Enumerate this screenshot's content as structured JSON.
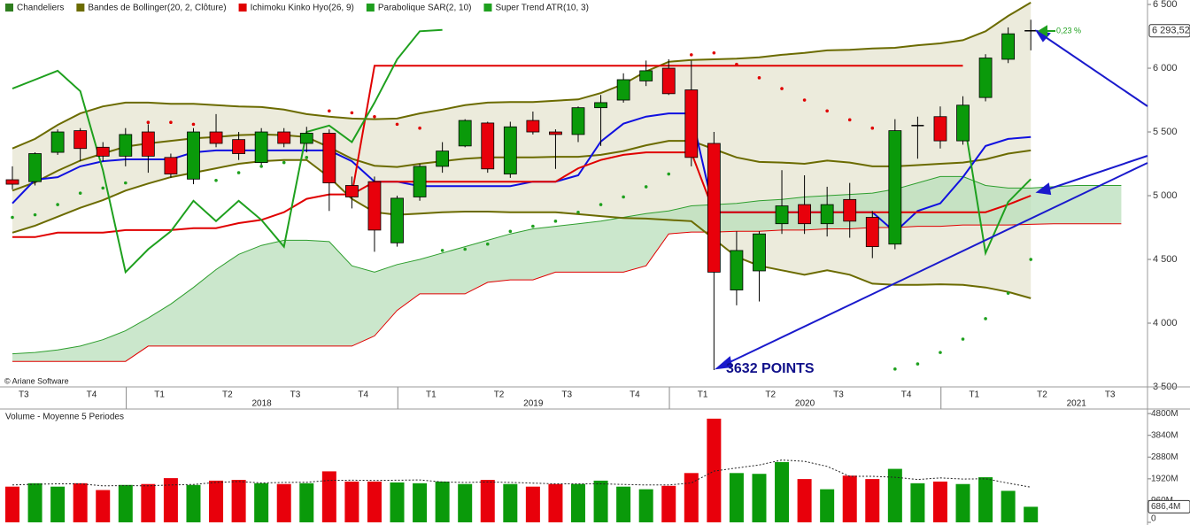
{
  "chart_data": {
    "type": "candlestick",
    "legend": [
      {
        "name": "Chandeliers",
        "color": "#2e7d1e"
      },
      {
        "name": "Bandes de Bollinger(20, 2, Clôture)",
        "color": "#6b6b00"
      },
      {
        "name": "Ichimoku Kinko Hyo(26, 9)",
        "color": "#e00000"
      },
      {
        "name": "Parabolique SAR(2, 10)",
        "color": "#1e9e1e"
      },
      {
        "name": "Super Trend ATR(10, 3)",
        "color": "#1ea01e"
      }
    ],
    "up_color": "#0a9a0a",
    "down_color": "#e8000b",
    "quarters": [
      "T3",
      "T4",
      "T1",
      "T2",
      "T3",
      "T4",
      "T1",
      "T2",
      "T3",
      "T4",
      "T1",
      "T2",
      "T3",
      "T4",
      "T1",
      "T2",
      "T3"
    ],
    "years": [
      "2018",
      "2019",
      "2020",
      "2021"
    ],
    "open": [
      5125,
      5110,
      5340,
      5510,
      5380,
      5310,
      5500,
      5300,
      5130,
      5500,
      5440,
      5260,
      5500,
      5410,
      5490,
      5080,
      5110,
      4630,
      4990,
      5230,
      5390,
      5570,
      5170,
      5590,
      5500,
      5480,
      5690,
      5750,
      5900,
      6000,
      5830,
      5410,
      4260,
      4410,
      4780,
      4930,
      4780,
      4970,
      4830,
      4620,
      5550,
      5620,
      5430,
      5770,
      6070,
      6293.52
    ],
    "high": [
      5230,
      5340,
      5520,
      5530,
      5420,
      5530,
      5560,
      5330,
      5530,
      5640,
      5500,
      5530,
      5530,
      5540,
      5520,
      5150,
      5150,
      5000,
      5250,
      5420,
      5600,
      5580,
      5580,
      5660,
      5520,
      5700,
      5790,
      5960,
      6060,
      6070,
      6060,
      5500,
      4720,
      4720,
      5200,
      5160,
      5070,
      5100,
      4880,
      5600,
      5620,
      5700,
      5780,
      6110,
      6320,
      6380
    ],
    "low": [
      5050,
      5080,
      5320,
      5270,
      5270,
      5230,
      5180,
      5140,
      5090,
      5380,
      5280,
      5230,
      5380,
      5340,
      4880,
      4900,
      4560,
      4600,
      4960,
      5180,
      5380,
      5180,
      5140,
      5480,
      5210,
      5420,
      5390,
      5730,
      5860,
      5790,
      5230,
      3632,
      4140,
      4170,
      4700,
      4700,
      4680,
      4670,
      4510,
      4580,
      5290,
      5370,
      5400,
      5740,
      6040,
      6140
    ],
    "close": [
      5090,
      5330,
      5500,
      5370,
      5310,
      5480,
      5310,
      5170,
      5500,
      5410,
      5330,
      5500,
      5410,
      5490,
      5100,
      4990,
      4730,
      4980,
      5230,
      5350,
      5590,
      5210,
      5540,
      5500,
      5480,
      5690,
      5730,
      5910,
      5980,
      5800,
      5300,
      4400,
      4570,
      4700,
      4920,
      4780,
      4930,
      4800,
      4600,
      5510,
      5550,
      5430,
      5710,
      6080,
      6270,
      6293.52
    ],
    "last_price": {
      "value": 6293.52,
      "label": "6 293,52"
    },
    "ylim": [
      3500,
      6535
    ],
    "yticks": [
      {
        "value": 6500,
        "label": "6 500"
      },
      {
        "value": 6000,
        "label": "6 000"
      },
      {
        "value": 5500,
        "label": "5 500"
      },
      {
        "value": 5000,
        "label": "5 000"
      },
      {
        "value": 4500,
        "label": "4 500"
      },
      {
        "value": 4000,
        "label": "4 000"
      },
      {
        "value": 3500,
        "label": "3 500"
      }
    ],
    "bollinger": {
      "color": "#6b6b00",
      "fill": "#ecebdc",
      "upper": [
        5370,
        5445,
        5555,
        5645,
        5700,
        5730,
        5730,
        5720,
        5720,
        5710,
        5700,
        5695,
        5675,
        5640,
        5620,
        5605,
        5600,
        5605,
        5645,
        5675,
        5710,
        5730,
        5735,
        5735,
        5745,
        5755,
        5805,
        5875,
        5975,
        6050,
        6065,
        6070,
        6075,
        6085,
        6105,
        6120,
        6140,
        6145,
        6155,
        6160,
        6180,
        6195,
        6220,
        6290,
        6410,
        6515
      ],
      "middle": [
        5040,
        5105,
        5195,
        5275,
        5330,
        5385,
        5410,
        5430,
        5450,
        5460,
        5475,
        5480,
        5475,
        5460,
        5380,
        5290,
        5235,
        5225,
        5250,
        5270,
        5290,
        5300,
        5300,
        5300,
        5305,
        5305,
        5320,
        5350,
        5395,
        5430,
        5430,
        5365,
        5300,
        5265,
        5260,
        5250,
        5275,
        5260,
        5230,
        5230,
        5240,
        5250,
        5260,
        5285,
        5330,
        5355
      ],
      "lower": [
        4710,
        4765,
        4835,
        4905,
        4965,
        5040,
        5095,
        5145,
        5180,
        5215,
        5250,
        5270,
        5280,
        5280,
        5145,
        4975,
        4870,
        4850,
        4860,
        4870,
        4875,
        4875,
        4870,
        4870,
        4870,
        4855,
        4840,
        4825,
        4820,
        4810,
        4800,
        4660,
        4520,
        4450,
        4415,
        4380,
        4415,
        4380,
        4310,
        4300,
        4300,
        4305,
        4300,
        4280,
        4245,
        4195
      ]
    },
    "cloud": {
      "fill": "#b9dfbb",
      "color_a": "#2e9e2e",
      "color_b": "#e00000",
      "span_a": [
        3760,
        3770,
        3790,
        3820,
        3870,
        3940,
        4040,
        4150,
        4280,
        4420,
        4540,
        4610,
        4650,
        4650,
        4640,
        4450,
        4400,
        4460,
        4500,
        4550,
        4600,
        4650,
        4700,
        4740,
        4760,
        4780,
        4800,
        4830,
        4860,
        4880,
        4920,
        4930,
        4940,
        4960,
        4970,
        4990,
        5000,
        5010,
        5020,
        5050,
        5100,
        5150,
        5150,
        5080,
        5060,
        5060,
        5070,
        5080,
        5080,
        5080
      ],
      "span_b": [
        3700,
        3700,
        3700,
        3700,
        3700,
        3700,
        3820,
        3820,
        3820,
        3820,
        3820,
        3820,
        3820,
        3820,
        3820,
        3820,
        3900,
        4100,
        4230,
        4230,
        4230,
        4320,
        4340,
        4340,
        4400,
        4400,
        4400,
        4400,
        4450,
        4700,
        4715,
        4715,
        4720,
        4720,
        4730,
        4730,
        4740,
        4740,
        4750,
        4750,
        4760,
        4760,
        4770,
        4770,
        4770,
        4775,
        4780,
        4780,
        4780,
        4780
      ]
    },
    "lines": [
      {
        "color": "#1010e0",
        "values": [
          4940,
          5125,
          5145,
          5230,
          5270,
          5285,
          5285,
          5285,
          5340,
          5355,
          5355,
          5355,
          5355,
          5355,
          5355,
          5270,
          5110,
          5110,
          5075,
          5075,
          5075,
          5075,
          5075,
          5110,
          5110,
          5160,
          5425,
          5565,
          5620,
          5645,
          5645,
          4870,
          4870,
          4870,
          4870,
          4870,
          4870,
          4870,
          4870,
          4715,
          4880,
          4940,
          5145,
          5390,
          5445,
          5460
        ]
      },
      {
        "color": "#e00000",
        "values": [
          4675,
          4675,
          4710,
          4710,
          4710,
          4730,
          4730,
          4730,
          4745,
          4745,
          4785,
          4810,
          4870,
          4975,
          5010,
          5010,
          5110,
          5110,
          5110,
          5110,
          5110,
          5110,
          5110,
          5110,
          5110,
          5215,
          5280,
          5320,
          5340,
          5340,
          5340,
          4870,
          4870,
          4870,
          4870,
          4870,
          4870,
          4870,
          4870,
          4870,
          4870,
          4870,
          4870,
          4870,
          4930,
          5000
        ]
      },
      {
        "color": "#e00000",
        "values": [
          null,
          null,
          null,
          null,
          null,
          null,
          null,
          null,
          null,
          null,
          null,
          null,
          null,
          null,
          null,
          5010,
          6020,
          6020,
          6020,
          6020,
          6020,
          6020,
          6020,
          6020,
          6020,
          6020,
          6020,
          6020,
          6020,
          6020,
          6020,
          6020,
          6020,
          6020,
          6020,
          6020,
          6020,
          6020,
          6020,
          6020,
          6020,
          6020,
          6020,
          null,
          null,
          null
        ]
      },
      {
        "color": "#1ea01e",
        "values": [
          5840,
          5910,
          5980,
          5820,
          5200,
          4400,
          4580,
          4720,
          4960,
          4800,
          4960,
          4810,
          4600,
          5500,
          5550,
          5420,
          5730,
          6070,
          6290,
          6300,
          null,
          null,
          null,
          null,
          null,
          null,
          null,
          null,
          null,
          null,
          null,
          null,
          null,
          null,
          null,
          null,
          null,
          null,
          null,
          null,
          null,
          null,
          5645,
          4550,
          4950,
          5130
        ]
      }
    ],
    "sar": [
      4830,
      4850,
      4930,
      5020,
      5060,
      5100,
      5575,
      5575,
      5560,
      5120,
      5180,
      5230,
      5260,
      5300,
      5665,
      5650,
      5620,
      5560,
      5530,
      4570,
      4580,
      4620,
      4720,
      4760,
      4800,
      4870,
      4930,
      4990,
      5070,
      5170,
      6105,
      6120,
      6030,
      5925,
      5840,
      5750,
      5665,
      5595,
      5530,
      3640,
      3680,
      3770,
      3875,
      4035,
      4235,
      4500
    ],
    "annotation": "3632 POINTS",
    "change_label": "0,23 %",
    "copyright": "© Ariane Software",
    "volume": {
      "title": "Volume  - Moyenne 5 Periodes",
      "values": [
        1575,
        1725,
        1575,
        1725,
        1425,
        1650,
        1690,
        1950,
        1650,
        1840,
        1875,
        1725,
        1690,
        1725,
        2250,
        1800,
        1800,
        1760,
        1725,
        1800,
        1690,
        1875,
        1690,
        1575,
        1690,
        1690,
        1840,
        1575,
        1460,
        1610,
        2175,
        4575,
        2175,
        2140,
        2660,
        1910,
        1460,
        2060,
        1910,
        2360,
        1725,
        1800,
        1690,
        1990,
        1390,
        686.4
      ],
      "value_labels_last": "686,4M",
      "average": [
        1650,
        1680,
        1700,
        1700,
        1610,
        1620,
        1610,
        1650,
        1670,
        1760,
        1800,
        1740,
        1760,
        1770,
        1850,
        1860,
        1850,
        1860,
        1870,
        1780,
        1760,
        1780,
        1760,
        1730,
        1700,
        1700,
        1700,
        1670,
        1650,
        1650,
        1740,
        2260,
        2400,
        2530,
        2750,
        2690,
        2470,
        2030,
        2030,
        1990,
        1890,
        1960,
        1910,
        1920,
        1730,
        1550
      ],
      "ylim": [
        0,
        5000
      ],
      "yticks": [
        {
          "value": 4800,
          "label": "4800M"
        },
        {
          "value": 3840,
          "label": "3840M"
        },
        {
          "value": 2880,
          "label": "2880M"
        },
        {
          "value": 1920,
          "label": "1920M"
        },
        {
          "value": 960,
          "label": "960M"
        },
        0
      ]
    }
  }
}
